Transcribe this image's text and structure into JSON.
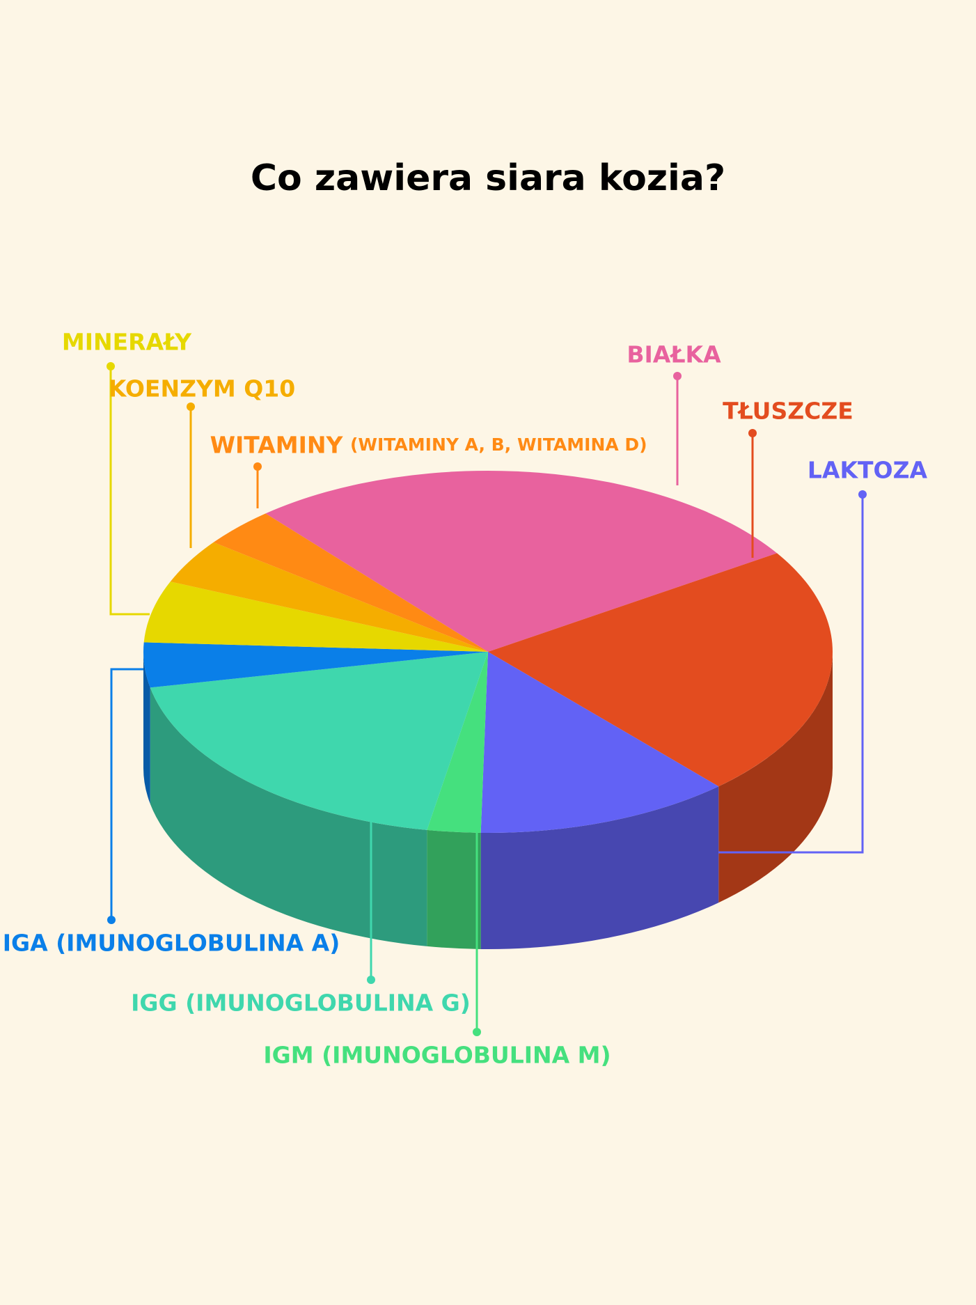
{
  "chart_data": {
    "type": "pie3d",
    "title": "Co zawiera siara kozia?",
    "categories": [
      "BIAŁKA",
      "TŁUSZCZE",
      "LAKTOZA",
      "IGM (IMUNOGLOBULINA M)",
      "IGG (IMUNOGLOBULINA G)",
      "IGA (IMUNOGLOBULINA A)",
      "MINERAŁY",
      "KOENZYM Q10",
      "WITAMINY"
    ],
    "values": [
      27,
      22.5,
      12,
      2.5,
      19,
      4,
      5.5,
      4,
      3.5
    ],
    "colors": [
      "#e8629e",
      "#e34c1f",
      "#6262f5",
      "#45e07e",
      "#3fd7ad",
      "#0a7fe8",
      "#e6d800",
      "#f5ad00",
      "#ff8a14"
    ],
    "annotations": [
      {
        "text": "(WITAMINY A, B, WITAMINA D)",
        "color": "#ff8a14"
      }
    ]
  }
}
